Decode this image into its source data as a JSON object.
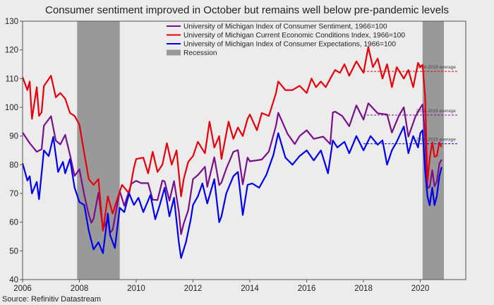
{
  "chart_data": {
    "type": "line",
    "title": "Consumer sentiment improved in October but remains well below pre-pandemic levels",
    "source": "Source: Refinitiv Datastream",
    "xlim": [
      2006.0,
      2021.6
    ],
    "ylim": [
      40,
      130
    ],
    "x_ticks": [
      2006,
      2008,
      2010,
      2012,
      2014,
      2016,
      2018,
      2020
    ],
    "y_ticks": [
      40,
      50,
      60,
      70,
      80,
      90,
      100,
      110,
      120,
      130
    ],
    "grid": false,
    "legend_position": "top-right",
    "recession_label": "Recession",
    "recessions": [
      [
        2007.92,
        2009.42
      ],
      [
        2020.08,
        2020.83
      ]
    ],
    "average_label": "2018-2019 average",
    "averages": [
      {
        "series": "current",
        "value": 112.5,
        "color": "#e8000b"
      },
      {
        "series": "sentiment",
        "value": 97.3,
        "color": "#7a0f8c"
      },
      {
        "series": "expectations",
        "value": 87.3,
        "color": "#0000ee"
      }
    ],
    "series": [
      {
        "key": "sentiment",
        "name": "University of Michigan Index of Consumer Sentiment, 1966=100",
        "color": "#7a0f8c",
        "points": [
          [
            2006.0,
            91.2
          ],
          [
            2006.25,
            87.5
          ],
          [
            2006.5,
            84.5
          ],
          [
            2006.67,
            85.4
          ],
          [
            2006.75,
            93.6
          ],
          [
            2007.0,
            96.9
          ],
          [
            2007.17,
            88.4
          ],
          [
            2007.33,
            87.1
          ],
          [
            2007.5,
            90.4
          ],
          [
            2007.67,
            83.4
          ],
          [
            2007.83,
            76.1
          ],
          [
            2008.0,
            78.4
          ],
          [
            2008.17,
            69.5
          ],
          [
            2008.33,
            62.6
          ],
          [
            2008.42,
            59.8
          ],
          [
            2008.5,
            61.2
          ],
          [
            2008.67,
            70.3
          ],
          [
            2008.83,
            57.6
          ],
          [
            2009.0,
            61.2
          ],
          [
            2009.08,
            56.3
          ],
          [
            2009.17,
            57.3
          ],
          [
            2009.42,
            70.8
          ],
          [
            2009.58,
            65.7
          ],
          [
            2009.83,
            73.4
          ],
          [
            2010.0,
            74.4
          ],
          [
            2010.17,
            73.6
          ],
          [
            2010.42,
            73.6
          ],
          [
            2010.58,
            67.8
          ],
          [
            2010.75,
            67.7
          ],
          [
            2010.92,
            74.5
          ],
          [
            2011.0,
            74.2
          ],
          [
            2011.17,
            67.5
          ],
          [
            2011.33,
            74.3
          ],
          [
            2011.5,
            63.7
          ],
          [
            2011.58,
            55.8
          ],
          [
            2011.67,
            59.5
          ],
          [
            2011.83,
            64.1
          ],
          [
            2012.0,
            75.0
          ],
          [
            2012.17,
            76.4
          ],
          [
            2012.42,
            79.3
          ],
          [
            2012.5,
            72.3
          ],
          [
            2012.75,
            82.6
          ],
          [
            2012.92,
            72.9
          ],
          [
            2013.0,
            73.8
          ],
          [
            2013.17,
            78.6
          ],
          [
            2013.42,
            84.5
          ],
          [
            2013.58,
            85.1
          ],
          [
            2013.75,
            73.2
          ],
          [
            2013.92,
            82.5
          ],
          [
            2014.0,
            81.2
          ],
          [
            2014.42,
            81.8
          ],
          [
            2014.67,
            84.6
          ],
          [
            2014.92,
            93.6
          ],
          [
            2015.0,
            98.1
          ],
          [
            2015.33,
            90.7
          ],
          [
            2015.58,
            87.2
          ],
          [
            2015.75,
            90.0
          ],
          [
            2016.0,
            92.0
          ],
          [
            2016.25,
            89.0
          ],
          [
            2016.58,
            89.8
          ],
          [
            2016.83,
            87.2
          ],
          [
            2016.92,
            98.2
          ],
          [
            2017.0,
            98.5
          ],
          [
            2017.25,
            97.0
          ],
          [
            2017.5,
            93.4
          ],
          [
            2017.75,
            100.7
          ],
          [
            2018.0,
            95.7
          ],
          [
            2018.17,
            101.4
          ],
          [
            2018.5,
            97.9
          ],
          [
            2018.83,
            97.5
          ],
          [
            2019.0,
            91.2
          ],
          [
            2019.25,
            97.2
          ],
          [
            2019.42,
            100.0
          ],
          [
            2019.58,
            89.8
          ],
          [
            2019.83,
            96.8
          ],
          [
            2020.0,
            99.8
          ],
          [
            2020.08,
            101.0
          ],
          [
            2020.17,
            89.1
          ],
          [
            2020.25,
            71.8
          ],
          [
            2020.33,
            72.3
          ],
          [
            2020.42,
            78.1
          ],
          [
            2020.5,
            72.5
          ],
          [
            2020.58,
            74.1
          ],
          [
            2020.67,
            80.4
          ],
          [
            2020.75,
            81.8
          ]
        ]
      },
      {
        "key": "current",
        "name": "University of Michigan Current Economic Conditions Index, 1966=100",
        "color": "#e8000b",
        "points": [
          [
            2006.0,
            110.5
          ],
          [
            2006.17,
            106.0
          ],
          [
            2006.25,
            109.0
          ],
          [
            2006.33,
            96.0
          ],
          [
            2006.5,
            107.0
          ],
          [
            2006.58,
            97.0
          ],
          [
            2006.67,
            98.3
          ],
          [
            2006.75,
            107.4
          ],
          [
            2007.0,
            111.0
          ],
          [
            2007.17,
            103.5
          ],
          [
            2007.33,
            105.0
          ],
          [
            2007.5,
            103.0
          ],
          [
            2007.67,
            98.0
          ],
          [
            2007.83,
            97.0
          ],
          [
            2008.0,
            94.0
          ],
          [
            2008.17,
            84.0
          ],
          [
            2008.33,
            75.0
          ],
          [
            2008.5,
            73.0
          ],
          [
            2008.67,
            75.0
          ],
          [
            2008.83,
            57.0
          ],
          [
            2009.0,
            69.0
          ],
          [
            2009.17,
            63.0
          ],
          [
            2009.33,
            68.0
          ],
          [
            2009.5,
            73.0
          ],
          [
            2009.75,
            70.0
          ],
          [
            2009.92,
            79.0
          ],
          [
            2010.0,
            82.0
          ],
          [
            2010.25,
            82.5
          ],
          [
            2010.42,
            77.0
          ],
          [
            2010.58,
            84.5
          ],
          [
            2010.75,
            77.5
          ],
          [
            2010.92,
            80.0
          ],
          [
            2011.08,
            87.5
          ],
          [
            2011.25,
            80.0
          ],
          [
            2011.42,
            85.0
          ],
          [
            2011.58,
            69.0
          ],
          [
            2011.67,
            75.0
          ],
          [
            2011.83,
            81.0
          ],
          [
            2012.0,
            83.0
          ],
          [
            2012.17,
            88.0
          ],
          [
            2012.42,
            84.0
          ],
          [
            2012.58,
            95.0
          ],
          [
            2012.75,
            86.0
          ],
          [
            2012.92,
            90.0
          ],
          [
            2013.0,
            82.0
          ],
          [
            2013.25,
            95.0
          ],
          [
            2013.42,
            89.0
          ],
          [
            2013.58,
            93.0
          ],
          [
            2013.75,
            90.0
          ],
          [
            2013.92,
            96.0
          ],
          [
            2014.0,
            97.5
          ],
          [
            2014.25,
            92.0
          ],
          [
            2014.42,
            98.0
          ],
          [
            2014.67,
            97.0
          ],
          [
            2014.92,
            105.0
          ],
          [
            2015.0,
            109.0
          ],
          [
            2015.25,
            106.0
          ],
          [
            2015.5,
            106.0
          ],
          [
            2015.75,
            107.5
          ],
          [
            2016.0,
            105.0
          ],
          [
            2016.17,
            110.0
          ],
          [
            2016.33,
            107.0
          ],
          [
            2016.5,
            109.0
          ],
          [
            2016.67,
            107.0
          ],
          [
            2016.83,
            110.0
          ],
          [
            2017.0,
            113.0
          ],
          [
            2017.17,
            112.0
          ],
          [
            2017.33,
            115.0
          ],
          [
            2017.5,
            111.0
          ],
          [
            2017.75,
            116.0
          ],
          [
            2018.0,
            112.0
          ],
          [
            2018.17,
            121.0
          ],
          [
            2018.33,
            114.0
          ],
          [
            2018.5,
            117.0
          ],
          [
            2018.67,
            110.0
          ],
          [
            2018.83,
            115.0
          ],
          [
            2019.0,
            107.0
          ],
          [
            2019.17,
            114.0
          ],
          [
            2019.42,
            110.0
          ],
          [
            2019.58,
            113.0
          ],
          [
            2019.75,
            107.0
          ],
          [
            2019.92,
            115.5
          ],
          [
            2020.0,
            114.0
          ],
          [
            2020.08,
            114.8
          ],
          [
            2020.17,
            103.7
          ],
          [
            2020.25,
            74.0
          ],
          [
            2020.33,
            82.3
          ],
          [
            2020.42,
            87.8
          ],
          [
            2020.5,
            82.8
          ],
          [
            2020.58,
            83.0
          ],
          [
            2020.67,
            87.8
          ],
          [
            2020.75,
            86.2
          ]
        ]
      },
      {
        "key": "expectations",
        "name": "University of Michigan Index of Consumer Expectations, 1966=100",
        "color": "#0000ee",
        "points": [
          [
            2006.0,
            80.5
          ],
          [
            2006.17,
            74.5
          ],
          [
            2006.25,
            76.0
          ],
          [
            2006.33,
            70.0
          ],
          [
            2006.5,
            74.0
          ],
          [
            2006.58,
            68.0
          ],
          [
            2006.75,
            85.0
          ],
          [
            2006.92,
            83.0
          ],
          [
            2007.08,
            89.7
          ],
          [
            2007.25,
            77.5
          ],
          [
            2007.42,
            81.0
          ],
          [
            2007.5,
            77.0
          ],
          [
            2007.67,
            82.0
          ],
          [
            2007.83,
            72.0
          ],
          [
            2008.0,
            67.0
          ],
          [
            2008.17,
            66.0
          ],
          [
            2008.33,
            57.0
          ],
          [
            2008.5,
            50.5
          ],
          [
            2008.67,
            53.0
          ],
          [
            2008.83,
            49.2
          ],
          [
            2009.0,
            63.0
          ],
          [
            2009.08,
            55.5
          ],
          [
            2009.25,
            51.0
          ],
          [
            2009.42,
            65.0
          ],
          [
            2009.58,
            63.5
          ],
          [
            2009.75,
            70.0
          ],
          [
            2009.92,
            66.0
          ],
          [
            2010.08,
            68.5
          ],
          [
            2010.25,
            63.5
          ],
          [
            2010.5,
            69.5
          ],
          [
            2010.67,
            61.0
          ],
          [
            2010.83,
            66.0
          ],
          [
            2011.0,
            72.0
          ],
          [
            2011.17,
            62.0
          ],
          [
            2011.33,
            68.5
          ],
          [
            2011.5,
            53.0
          ],
          [
            2011.58,
            47.5
          ],
          [
            2011.75,
            53.0
          ],
          [
            2011.92,
            61.0
          ],
          [
            2012.0,
            66.0
          ],
          [
            2012.17,
            69.0
          ],
          [
            2012.33,
            73.5
          ],
          [
            2012.5,
            66.5
          ],
          [
            2012.75,
            75.0
          ],
          [
            2012.92,
            60.0
          ],
          [
            2013.0,
            62.0
          ],
          [
            2013.17,
            70.0
          ],
          [
            2013.42,
            76.0
          ],
          [
            2013.58,
            77.5
          ],
          [
            2013.75,
            62.5
          ],
          [
            2013.92,
            73.0
          ],
          [
            2014.08,
            73.5
          ],
          [
            2014.33,
            72.0
          ],
          [
            2014.58,
            76.5
          ],
          [
            2014.83,
            83.5
          ],
          [
            2015.0,
            91.0
          ],
          [
            2015.25,
            82.5
          ],
          [
            2015.5,
            80.0
          ],
          [
            2015.75,
            83.0
          ],
          [
            2016.0,
            85.0
          ],
          [
            2016.25,
            81.5
          ],
          [
            2016.5,
            85.0
          ],
          [
            2016.75,
            77.0
          ],
          [
            2016.92,
            88.5
          ],
          [
            2017.08,
            86.0
          ],
          [
            2017.33,
            88.0
          ],
          [
            2017.5,
            84.0
          ],
          [
            2017.75,
            90.0
          ],
          [
            2018.0,
            85.0
          ],
          [
            2018.25,
            90.0
          ],
          [
            2018.5,
            87.0
          ],
          [
            2018.67,
            88.5
          ],
          [
            2018.83,
            80.0
          ],
          [
            2019.0,
            85.0
          ],
          [
            2019.17,
            88.0
          ],
          [
            2019.42,
            93.3
          ],
          [
            2019.58,
            84.0
          ],
          [
            2019.75,
            90.0
          ],
          [
            2019.92,
            86.0
          ],
          [
            2020.0,
            91.0
          ],
          [
            2020.08,
            92.0
          ],
          [
            2020.17,
            78.0
          ],
          [
            2020.25,
            69.0
          ],
          [
            2020.33,
            65.9
          ],
          [
            2020.42,
            72.0
          ],
          [
            2020.5,
            65.9
          ],
          [
            2020.58,
            69.0
          ],
          [
            2020.67,
            76.0
          ],
          [
            2020.75,
            79.2
          ]
        ]
      }
    ]
  }
}
